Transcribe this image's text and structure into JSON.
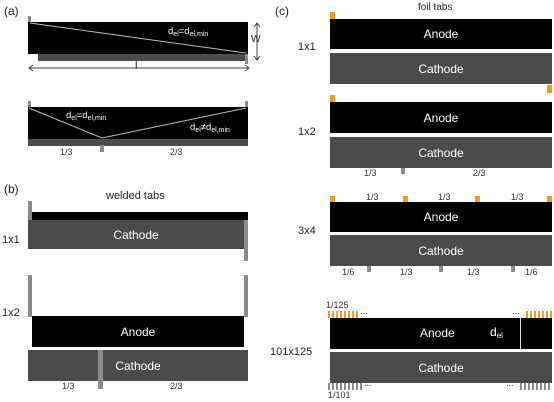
{
  "panels": {
    "a": "(a)",
    "b": "(b)",
    "c": "(c)"
  },
  "headings": {
    "welded": "welded tabs",
    "foil": "foil tabs"
  },
  "a": {
    "eq1": "d",
    "eq1_sub": "el",
    "eq1_rel": "=d",
    "eq1_sub2": "el,min",
    "w": "W",
    "l": "l",
    "eq2": "d",
    "eq2_sub": "el",
    "eq2_rel": "=d",
    "eq2_sub2": "el,min",
    "eq3": "d",
    "eq3_sub": "el",
    "eq3_rel": "≠d",
    "eq3_sub2": "el,min",
    "frac_left": "1/3",
    "frac_right": "2/3"
  },
  "b": {
    "config1": "1x1",
    "config2": "1x2",
    "anode": "Anode",
    "cathode": "Cathode",
    "frac_left": "1/3",
    "frac_right": "2/3"
  },
  "c": {
    "config1": "1x1",
    "config2": "1x2",
    "config3": "3x4",
    "config4": "101x125",
    "anode": "Anode",
    "cathode": "Cathode",
    "c2_frac_left": "1/3",
    "c2_frac_right": "2/3",
    "c3_top": [
      "1/3",
      "1/3",
      "1/3"
    ],
    "c3_bottom": [
      "1/6",
      "1/3",
      "1/3",
      "1/6"
    ],
    "c4_top_frac": "1/125",
    "c4_bottom_frac": "1/101",
    "ellipsis": "...",
    "d_el": "d",
    "d_el_sub": "el"
  },
  "colors": {
    "anode": "#000000",
    "cathode": "#4b4b4d",
    "welded_tab": "#8a8a8a",
    "foil_tab": "#f39a1e"
  }
}
